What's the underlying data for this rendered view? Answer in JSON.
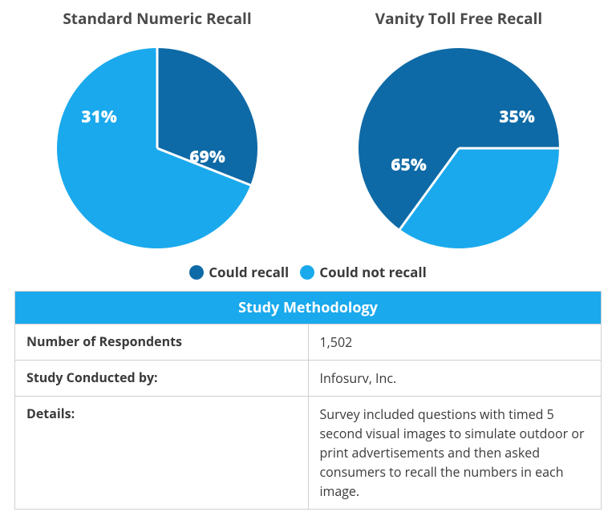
{
  "colors": {
    "dark_blue": "#0e6aa6",
    "light_blue": "#1aa9ed",
    "separator": "#ffffff",
    "text": "#3a3a3a",
    "title_text": "#4a4a4a",
    "border": "#cfcfcf",
    "background": "#ffffff"
  },
  "chart_style": {
    "type": "pie",
    "radius": 125,
    "separator_width": 3,
    "label_fontsize": 21,
    "label_fontweight": 800,
    "title_fontsize": 19,
    "title_fontweight": 700
  },
  "charts": [
    {
      "title": "Standard Numeric Recall",
      "start_angle_deg": -90,
      "direction": "clockwise",
      "slices": [
        {
          "key": "could_recall",
          "value": 31,
          "label": "31%",
          "color_key": "dark_blue",
          "label_rx": -0.58,
          "label_ry": -0.3
        },
        {
          "key": "could_not_recall",
          "value": 69,
          "label": "69%",
          "color_key": "light_blue",
          "label_rx": 0.5,
          "label_ry": 0.1
        }
      ]
    },
    {
      "title": "Vanity Toll Free Recall",
      "start_angle_deg": 0,
      "direction": "clockwise",
      "slices": [
        {
          "key": "could_not_recall",
          "value": 35,
          "label": "35%",
          "color_key": "light_blue",
          "label_rx": 0.58,
          "label_ry": -0.3
        },
        {
          "key": "could_recall",
          "value": 65,
          "label": "65%",
          "color_key": "dark_blue",
          "label_rx": -0.5,
          "label_ry": 0.18
        }
      ]
    }
  ],
  "legend": [
    {
      "label": "Could recall",
      "color_key": "dark_blue"
    },
    {
      "label": "Could not recall",
      "color_key": "light_blue"
    }
  ],
  "table": {
    "header": "Study Methodology",
    "header_bg_key": "light_blue",
    "rows": [
      {
        "key": "Number of Respondents",
        "value": "1,502"
      },
      {
        "key": "Study Conducted by:",
        "value": "Infosurv, Inc."
      },
      {
        "key": "Details:",
        "value": "Survey included questions with timed 5 second visual images to simulate outdoor or print advertisements and then asked consumers to recall the numbers in each image."
      }
    ]
  }
}
